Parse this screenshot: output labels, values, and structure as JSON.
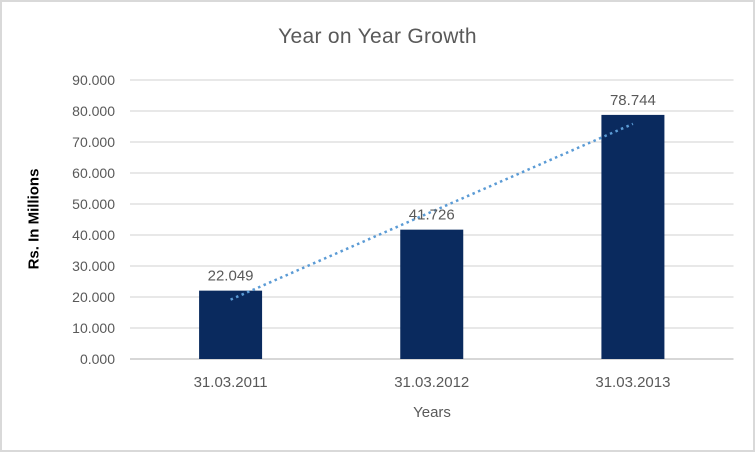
{
  "chart_data": {
    "type": "bar",
    "title": "Year on Year Growth",
    "xlabel": "Years",
    "ylabel": "Rs. In Millions",
    "categories": [
      "31.03.2011",
      "31.03.2012",
      "31.03.2013"
    ],
    "values": [
      22.049,
      41.726,
      78.744
    ],
    "value_labels": [
      "22.049",
      "41.726",
      "78.744"
    ],
    "ytick_values": [
      0,
      10,
      20,
      30,
      40,
      50,
      60,
      70,
      80,
      90
    ],
    "ytick_labels": [
      "0.000",
      "10.000",
      "20.000",
      "30.000",
      "40.000",
      "50.000",
      "60.000",
      "70.000",
      "80.000",
      "90.000"
    ],
    "ylim": [
      0,
      90
    ],
    "grid": true,
    "legend": false,
    "trendline": {
      "type": "linear",
      "style": "dotted",
      "color": "#5B9BD5"
    },
    "colors": {
      "bar": "#0A2A5E",
      "grid": "#D9D9D9",
      "axis": "#BFBFBF",
      "text": "#595959",
      "title": "#595959",
      "frame_border": "#D9D9D9",
      "background": "#FFFFFF"
    }
  }
}
